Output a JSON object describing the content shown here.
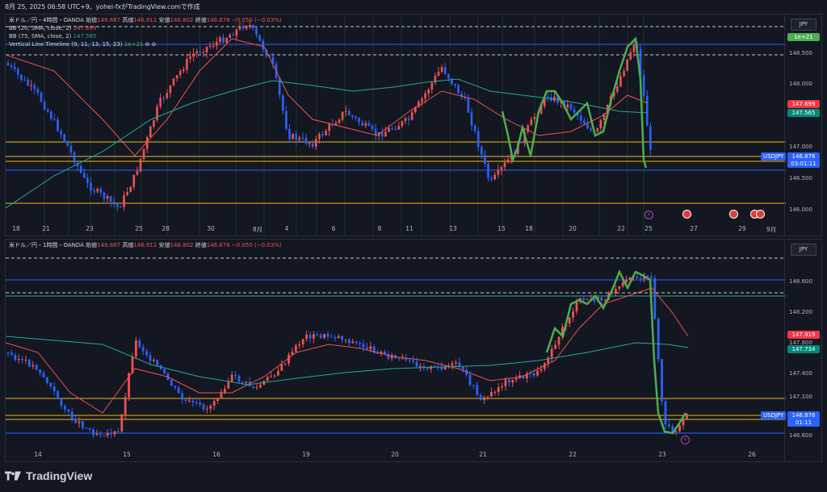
{
  "header": {
    "timestamp_line": "8月 25, 2025 06:58 UTC+9、yohei-fxがTradingView.comで作成"
  },
  "colors": {
    "bg": "#131722",
    "up": "#ef5350",
    "down": "#2962ff",
    "bb20": "#ef5350",
    "bb75": "#26a69a",
    "timeline": "#4caf50",
    "level": "#f0b90b"
  },
  "pane1": {
    "title_line": "米ドル／円・4時間・OANDA",
    "ohlc_prefix_open": "始値",
    "open": "146.887",
    "ohlc_prefix_high": "高値",
    "high": "146.911",
    "ohlc_prefix_low": "安値",
    "low": "146.802",
    "ohlc_prefix_close": "終値",
    "close": "146.876",
    "change": "−0.050 (−0.03%)",
    "ind1": "BB (20, SMA, close, 2)",
    "ind1_val": "147.699",
    "ind2": "BB (75, SMA, close, 2)",
    "ind2_val": "147.565",
    "ind3": "Vertical Line Timeline (9, 11, 13, 15, 23)",
    "ind3_val": "1e+21",
    "currency": "JPY",
    "badge": "1e+21",
    "price_labels": [
      "148.500",
      "148.000",
      "147.000",
      "146.500",
      "146.000"
    ],
    "tag_bb20": "147.699",
    "tag_bb75": "147.565",
    "symbol": "USDJPY",
    "last_price": "146.876",
    "countdown": "03:01:11",
    "x_labels": [
      "18",
      "21",
      "23",
      "25",
      "28",
      "30",
      "8月",
      "4",
      "6",
      "8",
      "11",
      "13",
      "15",
      "18",
      "20",
      "22",
      "25",
      "27",
      "29",
      "9月"
    ]
  },
  "pane2": {
    "title_line": "米ドル／円・1時間・OANDA",
    "ohlc_prefix_open": "始値",
    "open": "146.887",
    "ohlc_prefix_high": "高値",
    "high": "146.911",
    "ohlc_prefix_low": "安値",
    "low": "146.802",
    "ohlc_prefix_close": "終値",
    "close": "146.876",
    "change": "−0.050 (−0.03%)",
    "currency": "JPY",
    "price_labels": [
      "148.600",
      "148.200",
      "147.800",
      "147.400",
      "147.100",
      "146.600"
    ],
    "tag_bb20": "147.919",
    "tag_bb75": "147.734",
    "symbol": "USDJPY",
    "last_price": "146.876",
    "countdown": "01:11",
    "x_labels": [
      "14",
      "15",
      "16",
      "19",
      "20",
      "21",
      "22",
      "23",
      "26"
    ]
  },
  "footer": {
    "brand": "TradingView"
  }
}
